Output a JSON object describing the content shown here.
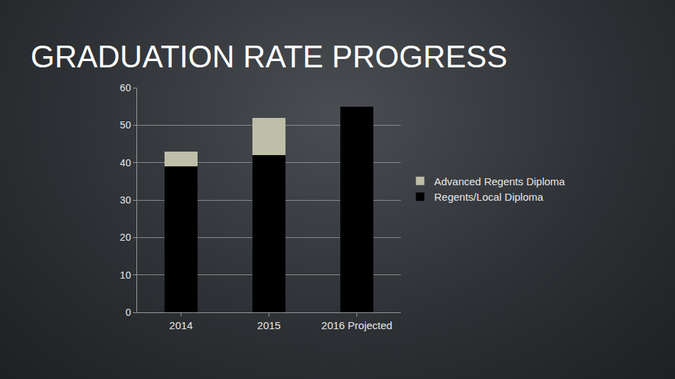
{
  "chart_data": {
    "type": "bar",
    "title": "GRADUATION RATE PROGRESS",
    "categories": [
      "2014",
      "2015",
      "2016 Projected"
    ],
    "series": [
      {
        "name": "Regents/Local Diploma",
        "color": "#000000",
        "values": [
          39,
          42,
          55
        ]
      },
      {
        "name": "Advanced Regents Diploma",
        "color": "#bfbfa9",
        "values": [
          4,
          10,
          null
        ]
      }
    ],
    "stacked": true,
    "ylim": [
      0,
      60
    ],
    "yticks": [
      0,
      10,
      20,
      30,
      40,
      50,
      60
    ],
    "grid": true,
    "legend": "right"
  }
}
